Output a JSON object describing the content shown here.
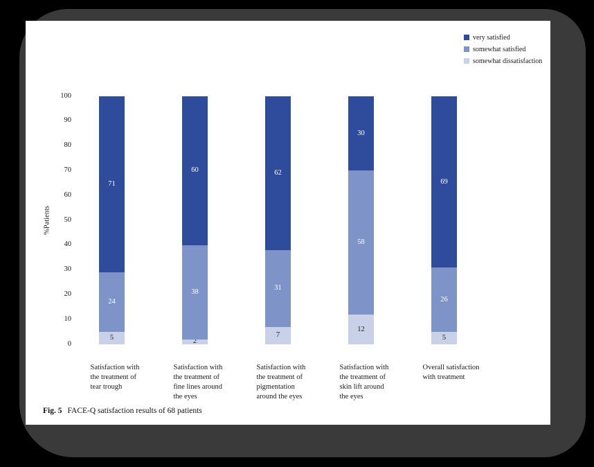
{
  "page": {
    "outer_background": "#000000",
    "frame_color": "#3a3a3a",
    "page_background": "#ffffff"
  },
  "caption": {
    "label": "Fig. 5",
    "text": "FACE-Q satisfaction results of 68 patients"
  },
  "chart_data": {
    "type": "bar",
    "stacked": true,
    "title": "",
    "xlabel": "",
    "ylabel": "%Patients",
    "ylim": [
      0,
      100
    ],
    "ytick_step": 10,
    "grid": false,
    "legend_position": "top-right",
    "categories": [
      "Satisfaction with the treatment of tear trough",
      "Satisfaction with the treatment of fine lines around the eyes",
      "Satisfaction with the treatment of pigmentation around the eyes",
      "Satisfaction with the treatment of skin lift around the eyes",
      "Overall satisfaction with treatment"
    ],
    "category_lines": [
      [
        "Satisfaction with",
        "the treatment of",
        "tear trough"
      ],
      [
        "Satisfaction with",
        "the treatment of",
        "fine lines around",
        "the eyes"
      ],
      [
        "Satisfaction with",
        "the treatment of",
        "pigmentation",
        "around the eyes"
      ],
      [
        "Satisfaction with",
        "the treatment of",
        "skin lift around",
        "the eyes"
      ],
      [
        "Overall satisfaction",
        "with treatment"
      ]
    ],
    "series": [
      {
        "name": "very satisfied",
        "color": "#2f4c9c",
        "label_color": "#ffffff",
        "values": [
          71,
          60,
          62,
          30,
          69
        ]
      },
      {
        "name": "somewhat satisfied",
        "color": "#7e93c8",
        "label_color": "#ffffff",
        "values": [
          24,
          38,
          31,
          58,
          26
        ]
      },
      {
        "name": "somewhat dissatisfaction",
        "color": "#c8d1e8",
        "label_color": "#1a1a1a",
        "values": [
          5,
          2,
          7,
          12,
          5
        ]
      }
    ]
  }
}
